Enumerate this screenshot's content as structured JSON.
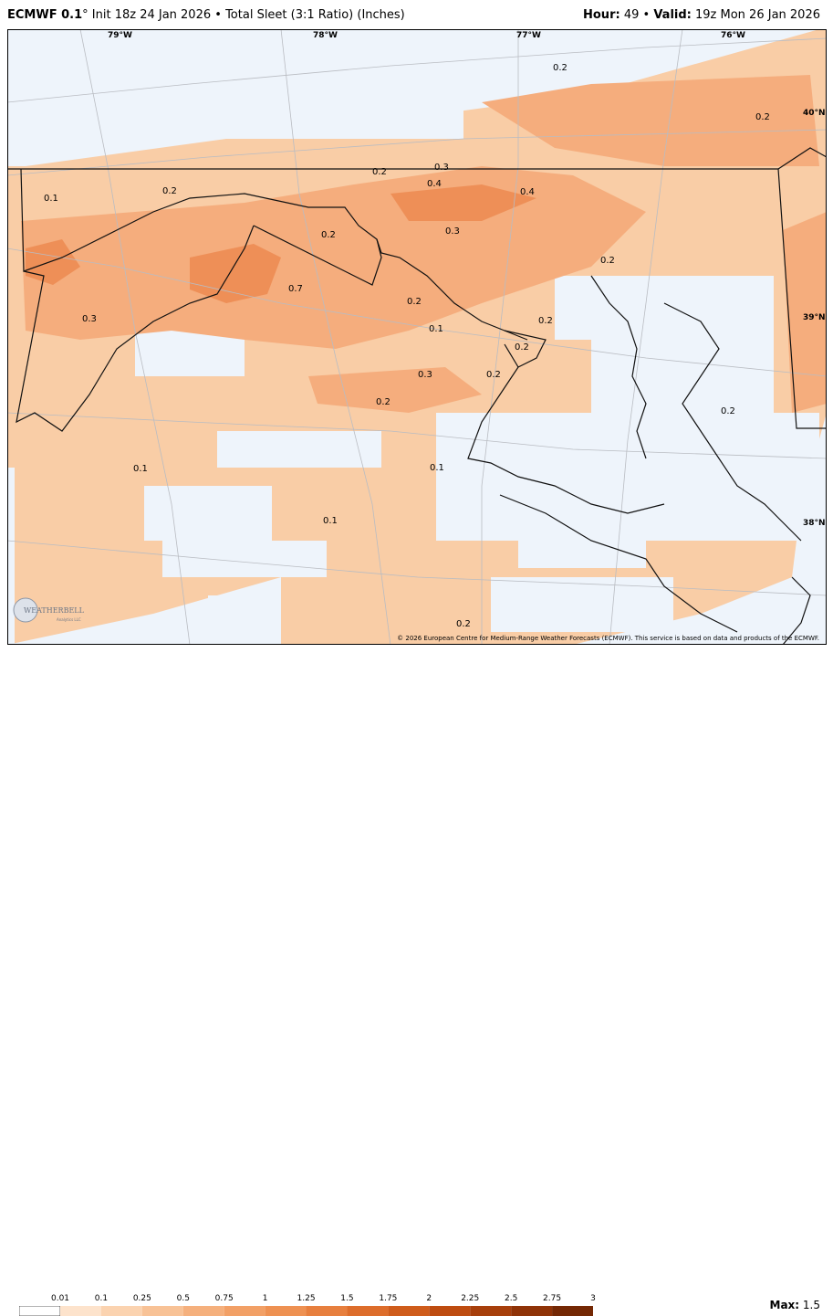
{
  "header": {
    "model": "ECMWF 0.1",
    "degree": "°",
    "init": "Init 18z 24 Jan 2026",
    "bullet": "•",
    "product": "Total Sleet (3:1 Ratio) (Inches)",
    "hour_label": "Hour:",
    "hour_value": "49",
    "valid_label": "Valid:",
    "valid_value": "19z Mon 26 Jan 2026"
  },
  "map": {
    "lon_labels": [
      "79°W",
      "78°W",
      "77°W",
      "76°W"
    ],
    "lat_labels": [
      "40°N",
      "39°N",
      "38°N"
    ],
    "contour_labels": [
      "0.2",
      "0.2",
      "0.1",
      "0.2",
      "0.2",
      "0.3",
      "0.4",
      "0.4",
      "0.3",
      "0.2",
      "0.2",
      "0.7",
      "0.3",
      "0.1",
      "0.2",
      "0.2",
      "0.3",
      "0.2",
      "0.2",
      "0.2",
      "0.1",
      "0.1",
      "0.1",
      "0.2",
      "0.2"
    ],
    "copyright": "© 2026 European Centre for Medium-Range Weather Forecasts (ECMWF). This service is based on data and products of the ECMWF.",
    "logo_text": "WEATHERBELL",
    "logo_sub": "Analytics LLC",
    "fill_colors": [
      "#f9cda6",
      "#f5ad7d",
      "#ee8f57"
    ],
    "background_color": "#eef4fb"
  },
  "legend": {
    "ticks": [
      "0.01",
      "0.1",
      "0.25",
      "0.5",
      "0.75",
      "1",
      "1.25",
      "1.5",
      "1.75",
      "2",
      "2.25",
      "2.5",
      "2.75",
      "3"
    ],
    "colors": [
      "#fde3cc",
      "#fbd3b0",
      "#f8c296",
      "#f5b07d",
      "#f2a066",
      "#ee9152",
      "#e77f3e",
      "#dd6d2b",
      "#cf5c1b",
      "#be4c10",
      "#a73f0b",
      "#8f3307",
      "#742804"
    ],
    "max_label": "Max:",
    "max_value": "1.5"
  }
}
